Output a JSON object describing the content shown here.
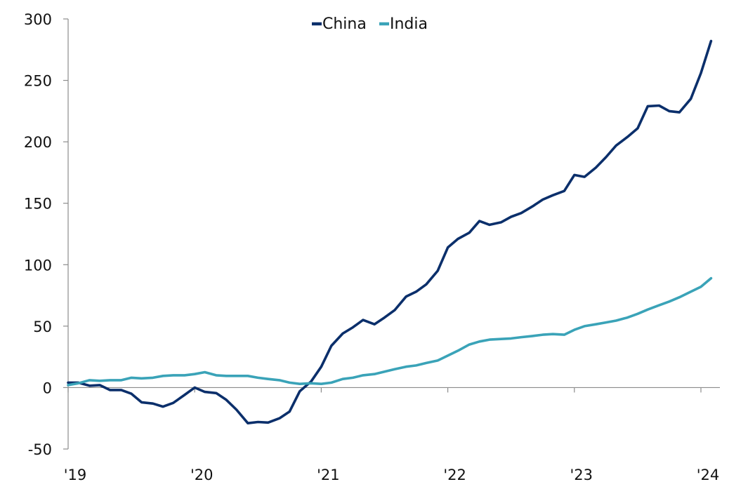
{
  "chart_data": {
    "type": "line",
    "title": "",
    "xlabel": "",
    "ylabel": "",
    "ylim": [
      -50,
      300
    ],
    "xlim": [
      2019.0,
      2024.15
    ],
    "y_ticks": [
      -50,
      0,
      50,
      100,
      150,
      200,
      250,
      300
    ],
    "x_tick_labels": [
      "'19",
      "'20",
      "'21",
      "'22",
      "'23",
      "'24"
    ],
    "x_tick_years": [
      2019,
      2020,
      2021,
      2022,
      2023,
      2024
    ],
    "grid": false,
    "legend_position": "top-center",
    "series": [
      {
        "name": "China",
        "color": "#0b2f6b",
        "points": [
          [
            2019.0,
            4
          ],
          [
            2019.08,
            4
          ],
          [
            2019.17,
            1.5
          ],
          [
            2019.25,
            2
          ],
          [
            2019.33,
            -2
          ],
          [
            2019.42,
            -2
          ],
          [
            2019.5,
            -5
          ],
          [
            2019.58,
            -12
          ],
          [
            2019.67,
            -13
          ],
          [
            2019.75,
            -15.5
          ],
          [
            2019.83,
            -12.5
          ],
          [
            2019.92,
            -6
          ],
          [
            2020.0,
            0
          ],
          [
            2020.08,
            -3.5
          ],
          [
            2020.17,
            -4.5
          ],
          [
            2020.25,
            -10
          ],
          [
            2020.33,
            -18
          ],
          [
            2020.42,
            -29
          ],
          [
            2020.5,
            -28
          ],
          [
            2020.58,
            -28.5
          ],
          [
            2020.67,
            -25
          ],
          [
            2020.75,
            -19.5
          ],
          [
            2020.83,
            -3
          ],
          [
            2020.92,
            5
          ],
          [
            2021.0,
            17
          ],
          [
            2021.08,
            34
          ],
          [
            2021.17,
            44
          ],
          [
            2021.25,
            49
          ],
          [
            2021.33,
            55
          ],
          [
            2021.42,
            51.5
          ],
          [
            2021.5,
            57
          ],
          [
            2021.58,
            63
          ],
          [
            2021.67,
            74
          ],
          [
            2021.75,
            78
          ],
          [
            2021.83,
            84
          ],
          [
            2021.92,
            95
          ],
          [
            2022.0,
            114
          ],
          [
            2022.08,
            121
          ],
          [
            2022.17,
            126
          ],
          [
            2022.25,
            135.5
          ],
          [
            2022.33,
            132.5
          ],
          [
            2022.42,
            134.5
          ],
          [
            2022.5,
            139
          ],
          [
            2022.58,
            142
          ],
          [
            2022.67,
            147.5
          ],
          [
            2022.75,
            153
          ],
          [
            2022.83,
            156.5
          ],
          [
            2022.92,
            160
          ],
          [
            2023.0,
            173
          ],
          [
            2023.08,
            171.5
          ],
          [
            2023.17,
            179
          ],
          [
            2023.25,
            187.5
          ],
          [
            2023.33,
            197
          ],
          [
            2023.42,
            204
          ],
          [
            2023.5,
            211
          ],
          [
            2023.58,
            229
          ],
          [
            2023.67,
            229.5
          ],
          [
            2023.75,
            225
          ],
          [
            2023.83,
            224
          ],
          [
            2023.92,
            235
          ],
          [
            2024.0,
            256
          ],
          [
            2024.08,
            282
          ]
        ]
      },
      {
        "name": "India",
        "color": "#3aa3b8",
        "points": [
          [
            2019.0,
            2
          ],
          [
            2019.08,
            3.5
          ],
          [
            2019.17,
            6
          ],
          [
            2019.25,
            5.5
          ],
          [
            2019.33,
            6
          ],
          [
            2019.42,
            6
          ],
          [
            2019.5,
            8
          ],
          [
            2019.58,
            7.5
          ],
          [
            2019.67,
            8
          ],
          [
            2019.75,
            9.5
          ],
          [
            2019.83,
            10
          ],
          [
            2019.92,
            10
          ],
          [
            2020.0,
            11
          ],
          [
            2020.08,
            12.5
          ],
          [
            2020.17,
            10
          ],
          [
            2020.25,
            9.5
          ],
          [
            2020.33,
            9.5
          ],
          [
            2020.42,
            9.5
          ],
          [
            2020.5,
            8
          ],
          [
            2020.58,
            7
          ],
          [
            2020.67,
            6
          ],
          [
            2020.75,
            4
          ],
          [
            2020.83,
            3
          ],
          [
            2020.92,
            3.5
          ],
          [
            2021.0,
            3
          ],
          [
            2021.08,
            4
          ],
          [
            2021.17,
            7
          ],
          [
            2021.25,
            8
          ],
          [
            2021.33,
            10
          ],
          [
            2021.42,
            11
          ],
          [
            2021.5,
            13
          ],
          [
            2021.58,
            15
          ],
          [
            2021.67,
            17
          ],
          [
            2021.75,
            18
          ],
          [
            2021.83,
            20
          ],
          [
            2021.92,
            22
          ],
          [
            2022.0,
            26
          ],
          [
            2022.08,
            30
          ],
          [
            2022.17,
            35
          ],
          [
            2022.25,
            37.5
          ],
          [
            2022.33,
            39
          ],
          [
            2022.42,
            39.5
          ],
          [
            2022.5,
            40
          ],
          [
            2022.58,
            41
          ],
          [
            2022.67,
            42
          ],
          [
            2022.75,
            43
          ],
          [
            2022.83,
            43.5
          ],
          [
            2022.92,
            43
          ],
          [
            2023.0,
            47
          ],
          [
            2023.08,
            50
          ],
          [
            2023.17,
            51.5
          ],
          [
            2023.25,
            53
          ],
          [
            2023.33,
            54.5
          ],
          [
            2023.42,
            57
          ],
          [
            2023.5,
            60
          ],
          [
            2023.58,
            63.5
          ],
          [
            2023.67,
            67
          ],
          [
            2023.75,
            70
          ],
          [
            2023.83,
            73.5
          ],
          [
            2023.92,
            78
          ],
          [
            2024.0,
            82
          ],
          [
            2024.08,
            89
          ]
        ]
      }
    ]
  }
}
